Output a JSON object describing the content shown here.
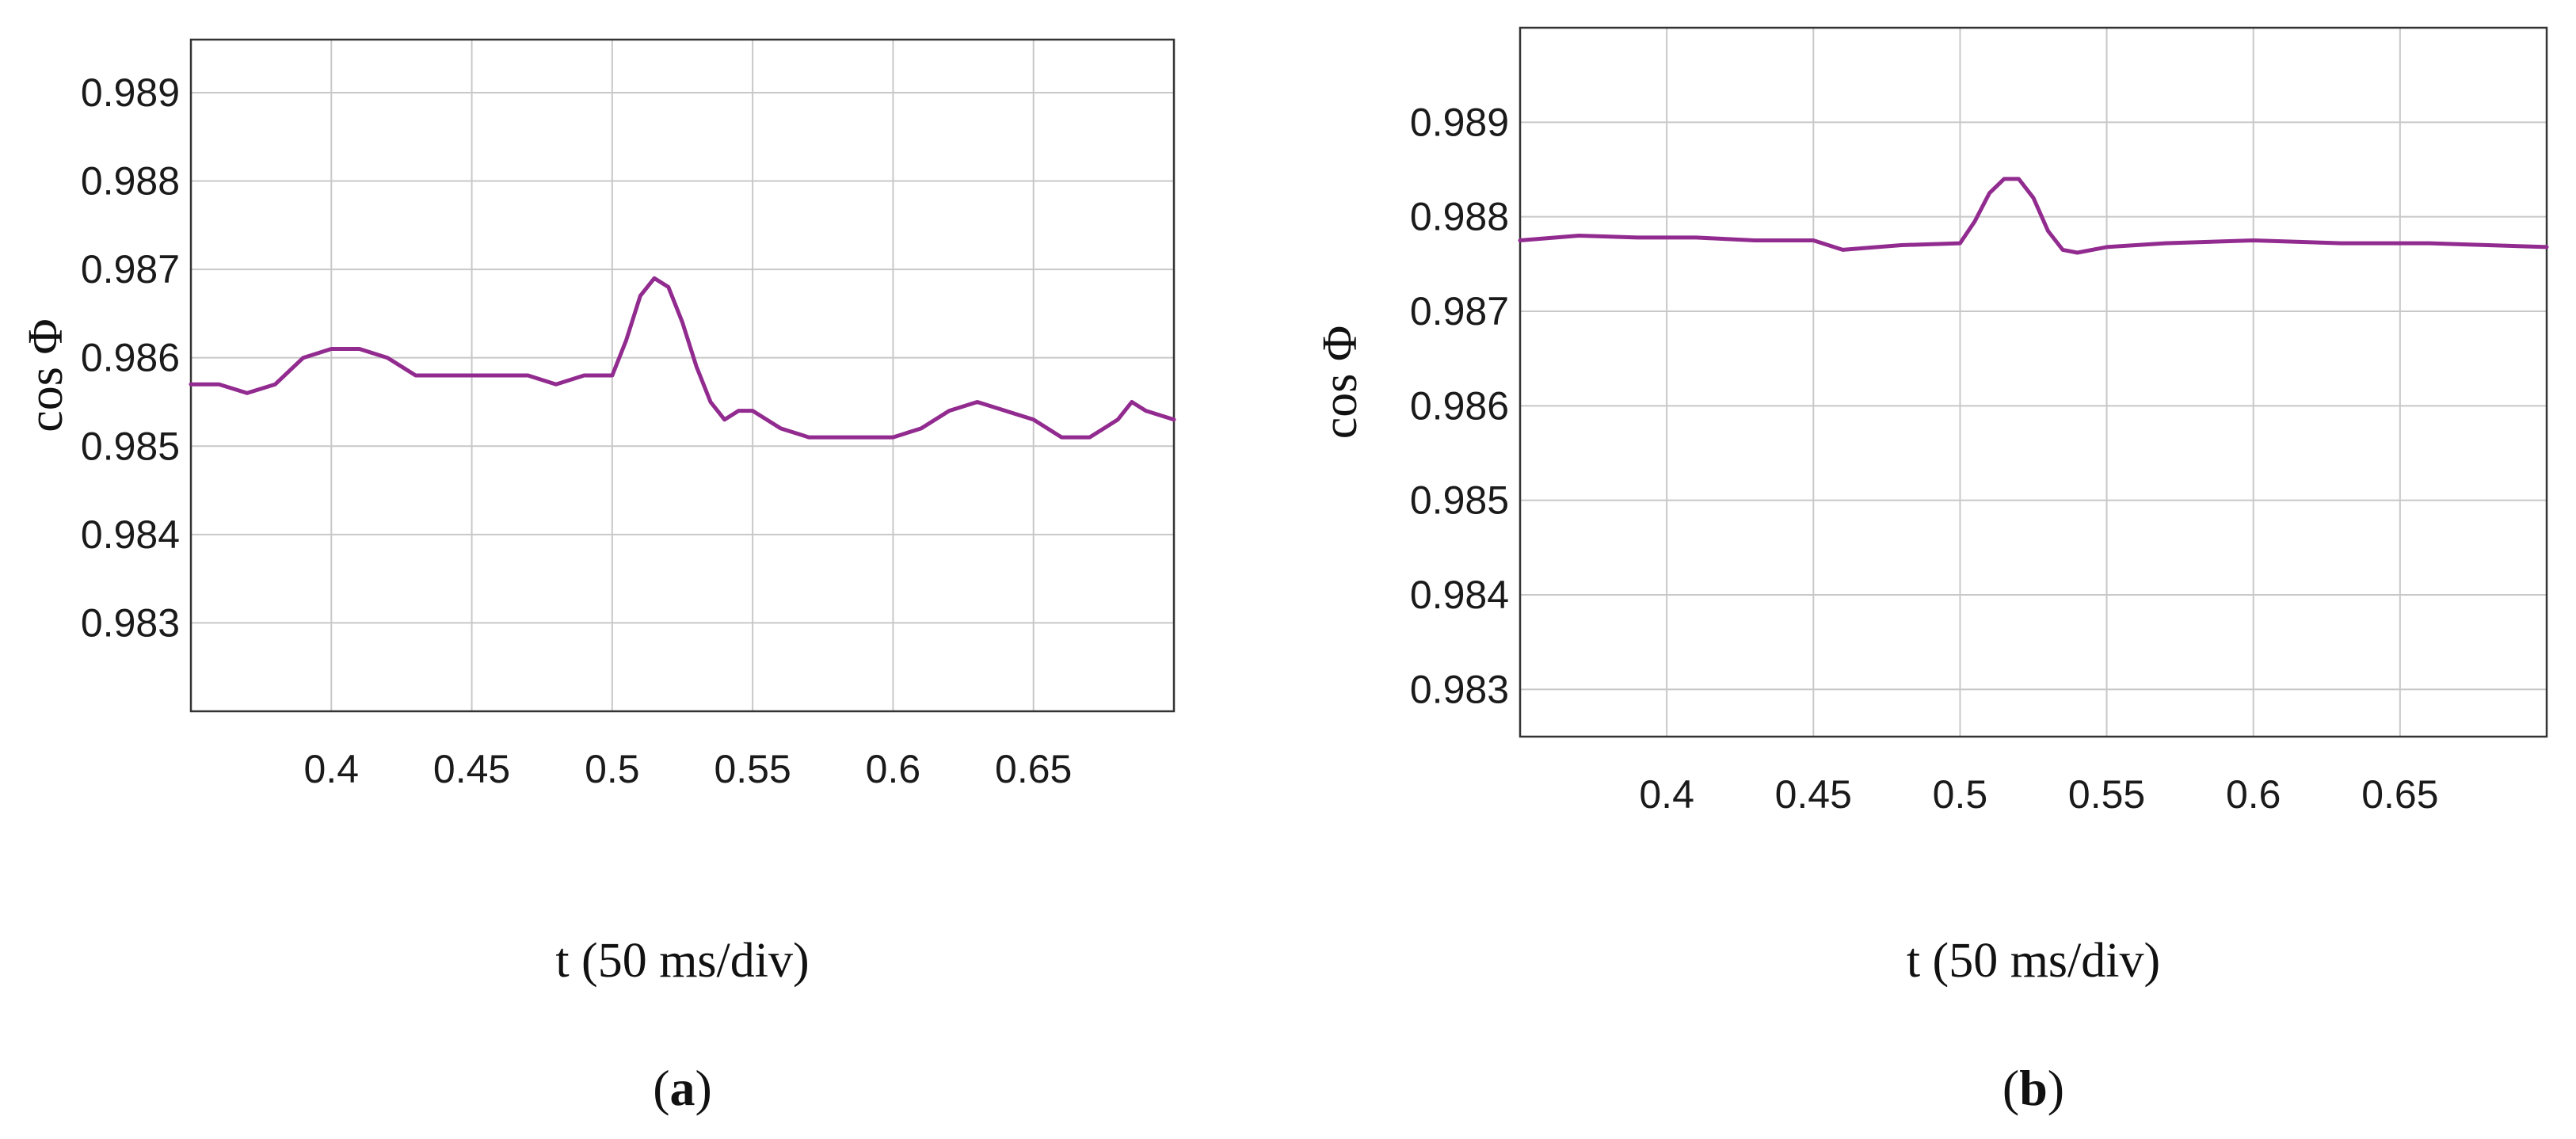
{
  "chart_data": [
    {
      "type": "line",
      "panel_label": "a",
      "xlabel": "t (50 ms/div)",
      "ylabel": "cos Φ",
      "xlim": [
        0.35,
        0.7
      ],
      "ylim": [
        0.982,
        0.9896
      ],
      "xticks": [
        "0.4",
        "0.45",
        "0.5",
        "0.55",
        "0.6",
        "0.65"
      ],
      "yticks": [
        "0.983",
        "0.984",
        "0.985",
        "0.986",
        "0.987",
        "0.988",
        "0.989"
      ],
      "grid": true,
      "color": "#922b8f",
      "series": [
        {
          "x": [
            0.35,
            0.36,
            0.37,
            0.38,
            0.39,
            0.4,
            0.41,
            0.42,
            0.43,
            0.44,
            0.45,
            0.46,
            0.47,
            0.48,
            0.49,
            0.5,
            0.505,
            0.51,
            0.515,
            0.52,
            0.525,
            0.53,
            0.535,
            0.54,
            0.545,
            0.55,
            0.56,
            0.57,
            0.58,
            0.59,
            0.6,
            0.61,
            0.62,
            0.63,
            0.64,
            0.65,
            0.66,
            0.67,
            0.68,
            0.685,
            0.69,
            0.7
          ],
          "values": [
            0.9857,
            0.9857,
            0.9856,
            0.9857,
            0.986,
            0.9861,
            0.9861,
            0.986,
            0.9858,
            0.9858,
            0.9858,
            0.9858,
            0.9858,
            0.9857,
            0.9858,
            0.9858,
            0.9862,
            0.9867,
            0.9869,
            0.9868,
            0.9864,
            0.9859,
            0.9855,
            0.9853,
            0.9854,
            0.9854,
            0.9852,
            0.9851,
            0.9851,
            0.9851,
            0.9851,
            0.9852,
            0.9854,
            0.9855,
            0.9854,
            0.9853,
            0.9851,
            0.9851,
            0.9853,
            0.9855,
            0.9854,
            0.9853
          ]
        }
      ]
    },
    {
      "type": "line",
      "panel_label": "b",
      "xlabel": "t (50 ms/div)",
      "ylabel": "cos Φ",
      "xlim": [
        0.35,
        0.7
      ],
      "ylim": [
        0.9825,
        0.99
      ],
      "xticks": [
        "0.4",
        "0.45",
        "0.5",
        "0.55",
        "0.6",
        "0.65"
      ],
      "yticks": [
        "0.983",
        "0.984",
        "0.985",
        "0.986",
        "0.987",
        "0.988",
        "0.989"
      ],
      "grid": true,
      "color": "#922b8f",
      "series": [
        {
          "x": [
            0.35,
            0.37,
            0.39,
            0.41,
            0.43,
            0.45,
            0.46,
            0.48,
            0.5,
            0.505,
            0.51,
            0.515,
            0.52,
            0.525,
            0.53,
            0.535,
            0.54,
            0.55,
            0.57,
            0.6,
            0.63,
            0.66,
            0.68,
            0.7
          ],
          "values": [
            0.98775,
            0.9878,
            0.98778,
            0.98778,
            0.98775,
            0.98775,
            0.98765,
            0.9877,
            0.98772,
            0.98795,
            0.98825,
            0.9884,
            0.9884,
            0.9882,
            0.98785,
            0.98765,
            0.98762,
            0.98768,
            0.98772,
            0.98775,
            0.98772,
            0.98772,
            0.9877,
            0.98768
          ]
        }
      ]
    }
  ]
}
